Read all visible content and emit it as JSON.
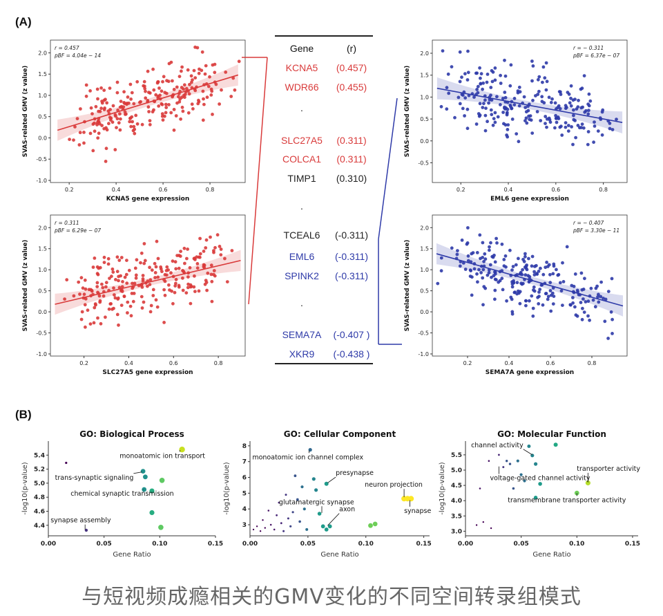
{
  "panel_a_label": "(A)",
  "panel_b_label": "(B)",
  "caption": "与短视频成瘾相关的GMV变化的不同空间转录组模式",
  "colors": {
    "red": "#d93a3a",
    "blue": "#2e3aa8",
    "black": "#222222"
  },
  "table": {
    "header_gene": "Gene",
    "header_r": "(r)",
    "rows": [
      {
        "gene": "KCNA5",
        "r": "(0.457)",
        "color": "red"
      },
      {
        "gene": "WDR66",
        "r": "(0.455)",
        "color": "red"
      },
      {
        "gene": ".",
        "r": "",
        "color": "black"
      },
      {
        "gene": "SLC27A5",
        "r": "(0.311)",
        "color": "red"
      },
      {
        "gene": "COLCA1",
        "r": "(0.311)",
        "color": "red"
      },
      {
        "gene": "TIMP1",
        "r": "(0.310)",
        "color": "black"
      },
      {
        "gene": ".",
        "r": "",
        "color": "black"
      },
      {
        "gene": "TCEAL6",
        "r": "(-0.311)",
        "color": "black"
      },
      {
        "gene": "EML6",
        "r": "(-0.311)",
        "color": "blue"
      },
      {
        "gene": "SPINK2",
        "r": "(-0.311)",
        "color": "blue"
      },
      {
        "gene": ".",
        "r": "",
        "color": "black"
      },
      {
        "gene": "SEMA7A",
        "r": "(-0.407 )",
        "color": "blue"
      },
      {
        "gene": "XKR9",
        "r": "(-0.438 )",
        "color": "blue"
      }
    ]
  },
  "chart_data": [
    {
      "type": "scatter",
      "id": "kcna5",
      "color": "red",
      "xlabel": "KCNA5 gene expression",
      "ylabel": "SVAS-related GMV (z value)",
      "stat_r": "r = 0.457",
      "stat_p": "pBF = 4.04e − 14",
      "stats_pos": "top-left",
      "xlim": [
        0.12,
        0.95
      ],
      "ylim": [
        -1.05,
        2.3
      ],
      "xticks": [
        0.2,
        0.4,
        0.6,
        0.8
      ],
      "xtick_labels": [
        "0.2",
        "0.4",
        "0.6",
        "0.8"
      ],
      "yticks": [
        -1.0,
        -0.5,
        0.0,
        0.5,
        1.0,
        1.5,
        2.0
      ],
      "ytick_labels": [
        "-1.0",
        "-0.5",
        "0.0",
        "0.5",
        "1.0",
        "1.5",
        "2.0"
      ],
      "fit": {
        "x": [
          0.15,
          0.92
        ],
        "y": [
          0.18,
          1.48
        ]
      },
      "points_n": 240,
      "points_seed": 11,
      "points_xrange": [
        0.15,
        0.93
      ],
      "points_noise": 0.55
    },
    {
      "type": "scatter",
      "id": "slc27a5",
      "color": "red",
      "xlabel": "SLC27A5 gene expression",
      "ylabel": "SVAS-related GMV (z value)",
      "stat_r": "r = 0.311",
      "stat_p": "pBF = 6.29e − 07",
      "stats_pos": "top-left",
      "xlim": [
        0.05,
        0.92
      ],
      "ylim": [
        -1.05,
        2.3
      ],
      "xticks": [
        0.2,
        0.4,
        0.6,
        0.8
      ],
      "xtick_labels": [
        "0.2",
        "0.4",
        "0.6",
        "0.8"
      ],
      "yticks": [
        -1.0,
        -0.5,
        0.0,
        0.5,
        1.0,
        1.5,
        2.0
      ],
      "ytick_labels": [
        "-1.0",
        "-0.5",
        "0.0",
        "0.5",
        "1.0",
        "1.5",
        "2.0"
      ],
      "fit": {
        "x": [
          0.07,
          0.9
        ],
        "y": [
          0.18,
          1.22
        ]
      },
      "points_n": 240,
      "points_seed": 23,
      "points_xrange": [
        0.07,
        0.9
      ],
      "points_noise": 0.55
    },
    {
      "type": "scatter",
      "id": "eml6",
      "color": "blue",
      "xlabel": "EML6 gene expression",
      "ylabel": "SVAS-related GMV (z value)",
      "stat_r": "r = − 0.311",
      "stat_p": "pBF = 6.37e − 07",
      "stats_pos": "top-right",
      "xlim": [
        0.08,
        0.9
      ],
      "ylim": [
        -0.95,
        2.3
      ],
      "xticks": [
        0.2,
        0.4,
        0.6,
        0.8
      ],
      "xtick_labels": [
        "0.2",
        "0.4",
        "0.6",
        "0.8"
      ],
      "yticks": [
        -0.5,
        0.0,
        0.5,
        1.0,
        1.5,
        2.0
      ],
      "ytick_labels": [
        "-0.5",
        "0.0",
        "0.5",
        "1.0",
        "1.5",
        "2.0"
      ],
      "fit": {
        "x": [
          0.1,
          0.88
        ],
        "y": [
          1.2,
          0.42
        ]
      },
      "points_n": 240,
      "points_seed": 37,
      "points_xrange": [
        0.1,
        0.88
      ],
      "points_noise": 0.55
    },
    {
      "type": "scatter",
      "id": "sema7a",
      "color": "blue",
      "xlabel": "SEMA7A gene expression",
      "ylabel": "SVAS-related GMV (z value)",
      "stat_r": "r = − 0.407",
      "stat_p": "pBF = 3.30e − 11",
      "stats_pos": "top-right",
      "xlim": [
        0.03,
        0.97
      ],
      "ylim": [
        -1.05,
        2.3
      ],
      "xticks": [
        0.2,
        0.4,
        0.6,
        0.8
      ],
      "xtick_labels": [
        "0.2",
        "0.4",
        "0.6",
        "0.8"
      ],
      "yticks": [
        -1.0,
        -0.5,
        0.0,
        0.5,
        1.0,
        1.5,
        2.0
      ],
      "ytick_labels": [
        "-1.0",
        "-0.5",
        "0.0",
        "0.5",
        "1.0",
        "1.5",
        "2.0"
      ],
      "fit": {
        "x": [
          0.05,
          0.95
        ],
        "y": [
          1.38,
          0.14
        ]
      },
      "points_n": 240,
      "points_seed": 53,
      "points_xrange": [
        0.05,
        0.95
      ],
      "points_noise": 0.55
    },
    {
      "type": "scatter",
      "id": "go_bp",
      "title": "GO: Biological Process",
      "xlabel": "Gene Ratio",
      "ylabel": "-log10(p-value)",
      "xlim": [
        0.0,
        0.15
      ],
      "ylim": [
        4.25,
        5.6
      ],
      "xticks": [
        0.0,
        0.05,
        0.1,
        0.15
      ],
      "xtick_labels": [
        "0.00",
        "0.05",
        "0.10",
        "0.15"
      ],
      "yticks": [
        4.4,
        4.6,
        4.8,
        5.0,
        5.2,
        5.4
      ],
      "ytick_labels": [
        "4.4",
        "4.6",
        "4.8",
        "5.0",
        "5.2",
        "5.4"
      ],
      "points": [
        {
          "x": 0.016,
          "y": 5.29,
          "c": "#440154",
          "s": 1.6
        },
        {
          "x": 0.034,
          "y": 4.33,
          "c": "#46337e",
          "s": 2.2
        },
        {
          "x": 0.085,
          "y": 5.17,
          "c": "#21918c",
          "s": 3.4
        },
        {
          "x": 0.087,
          "y": 5.09,
          "c": "#21918c",
          "s": 3.4
        },
        {
          "x": 0.086,
          "y": 4.91,
          "c": "#21918c",
          "s": 3.4
        },
        {
          "x": 0.093,
          "y": 4.89,
          "c": "#27ad81",
          "s": 3.6
        },
        {
          "x": 0.102,
          "y": 5.04,
          "c": "#5ec962",
          "s": 3.8
        },
        {
          "x": 0.093,
          "y": 4.58,
          "c": "#27ad81",
          "s": 3.6
        },
        {
          "x": 0.101,
          "y": 4.37,
          "c": "#5ec962",
          "s": 3.8
        },
        {
          "x": 0.12,
          "y": 5.48,
          "c": "#c8e020",
          "s": 4.2
        }
      ],
      "annotations": [
        {
          "text": "monoatomic ion transport",
          "tx": 0.064,
          "ty": 5.36,
          "px": 0.118,
          "py": 5.47
        },
        {
          "text": "trans-synaptic signaling",
          "tx": 0.006,
          "ty": 5.05,
          "px": 0.084,
          "py": 5.16
        },
        {
          "text": "chemical synaptic transmission",
          "tx": 0.02,
          "ty": 4.82,
          "px": 0.085,
          "py": 4.9
        },
        {
          "text": "synapse assembly",
          "tx": 0.002,
          "ty": 4.44,
          "px": 0.033,
          "py": 4.34
        }
      ]
    },
    {
      "type": "scatter",
      "id": "go_cc",
      "title": "GO: Cellular Component",
      "xlabel": "Gene Ratio",
      "ylabel": "-log10(p-value)",
      "xlim": [
        0.0,
        0.155
      ],
      "ylim": [
        2.3,
        8.3
      ],
      "xticks": [
        0.0,
        0.05,
        0.1,
        0.15
      ],
      "xtick_labels": [
        "0.00",
        "0.05",
        "0.10",
        "0.15"
      ],
      "yticks": [
        3,
        4,
        5,
        6,
        7,
        8
      ],
      "ytick_labels": [
        "3",
        "4",
        "5",
        "6",
        "7",
        "8"
      ],
      "points": [
        {
          "x": 0.003,
          "y": 2.7,
          "c": "#440154",
          "s": 1.2
        },
        {
          "x": 0.006,
          "y": 2.9,
          "c": "#440154",
          "s": 1.2
        },
        {
          "x": 0.009,
          "y": 2.6,
          "c": "#440154",
          "s": 1.2
        },
        {
          "x": 0.011,
          "y": 3.3,
          "c": "#440154",
          "s": 1.2
        },
        {
          "x": 0.013,
          "y": 2.8,
          "c": "#440154",
          "s": 1.2
        },
        {
          "x": 0.016,
          "y": 3.9,
          "c": "#481567",
          "s": 1.3
        },
        {
          "x": 0.018,
          "y": 3.0,
          "c": "#481567",
          "s": 1.3
        },
        {
          "x": 0.021,
          "y": 2.7,
          "c": "#481567",
          "s": 1.3
        },
        {
          "x": 0.023,
          "y": 3.6,
          "c": "#482677",
          "s": 1.4
        },
        {
          "x": 0.025,
          "y": 4.4,
          "c": "#482677",
          "s": 1.4
        },
        {
          "x": 0.027,
          "y": 3.1,
          "c": "#482677",
          "s": 1.4
        },
        {
          "x": 0.029,
          "y": 2.6,
          "c": "#453781",
          "s": 1.5
        },
        {
          "x": 0.031,
          "y": 4.9,
          "c": "#453781",
          "s": 1.5
        },
        {
          "x": 0.033,
          "y": 3.4,
          "c": "#453781",
          "s": 1.5
        },
        {
          "x": 0.035,
          "y": 2.9,
          "c": "#3f4788",
          "s": 1.6
        },
        {
          "x": 0.037,
          "y": 3.8,
          "c": "#3f4788",
          "s": 1.6
        },
        {
          "x": 0.039,
          "y": 6.1,
          "c": "#39558c",
          "s": 1.9
        },
        {
          "x": 0.041,
          "y": 4.6,
          "c": "#39558c",
          "s": 1.9
        },
        {
          "x": 0.043,
          "y": 3.2,
          "c": "#39558c",
          "s": 1.8
        },
        {
          "x": 0.045,
          "y": 5.4,
          "c": "#2d708e",
          "s": 2.1
        },
        {
          "x": 0.047,
          "y": 4.0,
          "c": "#2d708e",
          "s": 2.1
        },
        {
          "x": 0.049,
          "y": 2.7,
          "c": "#2d708e",
          "s": 2.0
        },
        {
          "x": 0.052,
          "y": 7.75,
          "c": "#31688e",
          "s": 2.6
        },
        {
          "x": 0.055,
          "y": 5.9,
          "c": "#25858e",
          "s": 2.6
        },
        {
          "x": 0.057,
          "y": 5.2,
          "c": "#25858e",
          "s": 2.6
        },
        {
          "x": 0.06,
          "y": 3.7,
          "c": "#1e9b8a",
          "s": 2.8
        },
        {
          "x": 0.063,
          "y": 2.9,
          "c": "#1e9b8a",
          "s": 2.9
        },
        {
          "x": 0.066,
          "y": 2.7,
          "c": "#1e9b8a",
          "s": 2.9
        },
        {
          "x": 0.069,
          "y": 2.9,
          "c": "#1e9b8a",
          "s": 2.9
        },
        {
          "x": 0.066,
          "y": 5.6,
          "c": "#1e9b8a",
          "s": 3.0
        },
        {
          "x": 0.104,
          "y": 2.95,
          "c": "#6ece58",
          "s": 3.4
        },
        {
          "x": 0.108,
          "y": 3.05,
          "c": "#6ece58",
          "s": 3.4
        },
        {
          "x": 0.133,
          "y": 4.65,
          "c": "#fde725",
          "s": 4.0
        },
        {
          "x": 0.136,
          "y": 4.65,
          "c": "#fde725",
          "s": 4.0
        },
        {
          "x": 0.139,
          "y": 4.65,
          "c": "#fde725",
          "s": 4.0
        }
      ],
      "annotations": [
        {
          "text": "monoatomic ion channel complex",
          "tx": 0.002,
          "ty": 7.15,
          "px": 0.051,
          "py": 7.7
        },
        {
          "text": "presynapse",
          "tx": 0.074,
          "ty": 6.15,
          "px": 0.067,
          "py": 5.65
        },
        {
          "text": "neuron projection",
          "tx": 0.099,
          "ty": 5.4,
          "px": 0.133,
          "py": 4.75
        },
        {
          "text": "glutamatergic synapse",
          "tx": 0.025,
          "ty": 4.3,
          "px": 0.062,
          "py": 3.75
        },
        {
          "text": "axon",
          "tx": 0.077,
          "ty": 3.85,
          "px": 0.067,
          "py": 2.95
        },
        {
          "text": "synapse",
          "tx": 0.133,
          "ty": 3.75,
          "px": 0.138,
          "py": 4.55
        }
      ]
    },
    {
      "type": "scatter",
      "id": "go_mf",
      "title": "GO: Molecular Function",
      "xlabel": "Gene Ratio",
      "ylabel": "-log10(p-value)",
      "xlim": [
        0.0,
        0.155
      ],
      "ylim": [
        2.85,
        5.95
      ],
      "xticks": [
        0.0,
        0.05,
        0.1,
        0.15
      ],
      "xtick_labels": [
        "0.00",
        "0.05",
        "0.10",
        "0.15"
      ],
      "yticks": [
        3.0,
        3.5,
        4.0,
        4.5,
        5.0,
        5.5
      ],
      "ytick_labels": [
        "3.0",
        "3.5",
        "4.0",
        "4.5",
        "5.0",
        "5.5"
      ],
      "points": [
        {
          "x": 0.01,
          "y": 3.2,
          "c": "#440154",
          "s": 1.2
        },
        {
          "x": 0.016,
          "y": 3.3,
          "c": "#440154",
          "s": 1.2
        },
        {
          "x": 0.023,
          "y": 3.1,
          "c": "#440154",
          "s": 1.2
        },
        {
          "x": 0.013,
          "y": 4.4,
          "c": "#481567",
          "s": 1.3
        },
        {
          "x": 0.021,
          "y": 5.3,
          "c": "#481567",
          "s": 1.3
        },
        {
          "x": 0.03,
          "y": 5.5,
          "c": "#482677",
          "s": 1.4
        },
        {
          "x": 0.034,
          "y": 5.1,
          "c": "#453781",
          "s": 1.5
        },
        {
          "x": 0.037,
          "y": 5.3,
          "c": "#39558c",
          "s": 1.7
        },
        {
          "x": 0.04,
          "y": 5.2,
          "c": "#39558c",
          "s": 1.7
        },
        {
          "x": 0.043,
          "y": 4.4,
          "c": "#39558c",
          "s": 1.8
        },
        {
          "x": 0.047,
          "y": 5.3,
          "c": "#2d708e",
          "s": 2.1
        },
        {
          "x": 0.05,
          "y": 4.85,
          "c": "#2d708e",
          "s": 2.1
        },
        {
          "x": 0.053,
          "y": 4.65,
          "c": "#2d708e",
          "s": 2.1
        },
        {
          "x": 0.057,
          "y": 5.78,
          "c": "#25858e",
          "s": 2.5
        },
        {
          "x": 0.06,
          "y": 5.48,
          "c": "#25858e",
          "s": 2.6
        },
        {
          "x": 0.063,
          "y": 5.2,
          "c": "#25858e",
          "s": 2.6
        },
        {
          "x": 0.067,
          "y": 4.55,
          "c": "#1e9b8a",
          "s": 2.8
        },
        {
          "x": 0.063,
          "y": 4.1,
          "c": "#1e9b8a",
          "s": 2.8
        },
        {
          "x": 0.081,
          "y": 5.83,
          "c": "#22a884",
          "s": 3.0
        },
        {
          "x": 0.1,
          "y": 4.25,
          "c": "#6ece58",
          "s": 3.4
        },
        {
          "x": 0.11,
          "y": 4.58,
          "c": "#b5de2b",
          "s": 3.6
        }
      ],
      "annotations": [
        {
          "text": "channel activity",
          "tx": 0.005,
          "ty": 5.75,
          "px": 0.06,
          "py": 5.5
        },
        {
          "text": "voltage-gated channel activity",
          "tx": 0.022,
          "ty": 4.67,
          "px": 0.03,
          "py": 5.12
        },
        {
          "text": "transporter activity",
          "tx": 0.1,
          "ty": 4.98,
          "px": 0.11,
          "py": 4.6
        },
        {
          "text": "transmembrane transporter activity",
          "tx": 0.038,
          "ty": 3.95,
          "px": 0.1,
          "py": 4.25
        }
      ]
    }
  ]
}
